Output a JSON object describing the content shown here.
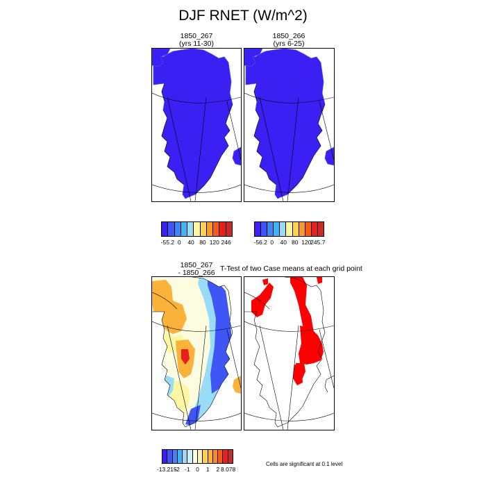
{
  "figure": {
    "title": "DJF RNET (W/m^2)"
  },
  "panels": {
    "case1": {
      "title_line1": "1850_267",
      "title_line2": "(yrs 11-30)"
    },
    "case2": {
      "title_line1": "1850_266",
      "title_line2": "(yrs 6-25)"
    },
    "diff": {
      "title_line1": "1850_267",
      "title_line2": "- 1850_266"
    },
    "ttest": {
      "title": "T-Test of two Case means at each grid point"
    }
  },
  "colorbars": {
    "case1": {
      "labels": [
        "-55.2",
        "0",
        "40",
        "80",
        "120",
        "246"
      ],
      "colors": [
        "#3c1ff2",
        "#3f55f5",
        "#3e86f6",
        "#41b4f7",
        "#99dcf8",
        "#fdf6a3",
        "#fcd24e",
        "#fb9a2c",
        "#f65b1c",
        "#e8201b",
        "#c92b2b"
      ]
    },
    "case2": {
      "labels": [
        "-56.2",
        "0",
        "40",
        "80",
        "120",
        "245.7"
      ],
      "colors": [
        "#3c1ff2",
        "#3f55f5",
        "#3e86f6",
        "#41b4f7",
        "#99dcf8",
        "#fdf6a3",
        "#fcd24e",
        "#fb9a2c",
        "#f65b1c",
        "#e8201b",
        "#c92b2b"
      ]
    },
    "diff": {
      "labels": [
        "-13.215",
        "-2",
        "-1",
        "0",
        "1",
        "2",
        "8.078"
      ],
      "colors": [
        "#3c1ff2",
        "#3f55f5",
        "#3e86f6",
        "#41b4f7",
        "#99dcf8",
        "#cdeefa",
        "#fefce0",
        "#fdf6a3",
        "#fcd24e",
        "#fbb23b",
        "#f98a24",
        "#f65b1c",
        "#e8201b",
        "#c92b2b"
      ]
    }
  },
  "note": "Cells are significant at 0.1 level",
  "map_colors": {
    "case_fill": "#3c1ff2",
    "case_edge": "#3f55f5",
    "significant": "#ff0000",
    "diff_blue": "#3f55f5",
    "diff_light_blue": "#99dcf8",
    "diff_pale": "#fefce0",
    "diff_yellow": "#fdf6a3",
    "diff_orange": "#fbb23b",
    "diff_red": "#e8201b"
  }
}
